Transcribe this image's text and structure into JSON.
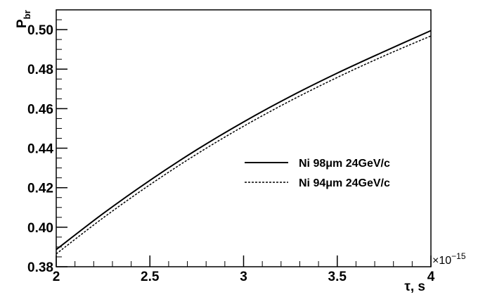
{
  "chart_data": {
    "type": "line",
    "xlabel": "τ, s",
    "ylabel_main": "P",
    "ylabel_sub": "br",
    "x_exponent_label": "×10",
    "x_exponent_power": "−15",
    "xlim": [
      2,
      4
    ],
    "ylim": [
      0.38,
      0.51
    ],
    "x_ticks": [
      {
        "value": 2,
        "label": "2"
      },
      {
        "value": 2.5,
        "label": "2.5"
      },
      {
        "value": 3,
        "label": "3"
      },
      {
        "value": 3.5,
        "label": "3.5"
      },
      {
        "value": 4,
        "label": "4"
      }
    ],
    "y_ticks": [
      {
        "value": 0.38,
        "label": "0.38"
      },
      {
        "value": 0.4,
        "label": "0.40"
      },
      {
        "value": 0.42,
        "label": "0.42"
      },
      {
        "value": 0.44,
        "label": "0.44"
      },
      {
        "value": 0.46,
        "label": "0.46"
      },
      {
        "value": 0.48,
        "label": "0.48"
      },
      {
        "value": 0.5,
        "label": "0.50"
      }
    ],
    "x": [
      2.0,
      2.25,
      2.5,
      2.75,
      3.0,
      3.25,
      3.5,
      3.75,
      4.0
    ],
    "series": [
      {
        "name": "Ni 98μm 24GeV/c",
        "style": "solid",
        "color": "#000000",
        "values": [
          0.3887,
          0.4069,
          0.4237,
          0.4392,
          0.4533,
          0.4662,
          0.478,
          0.4889,
          0.4995
        ]
      },
      {
        "name": "Ni 94μm 24GeV/c",
        "style": "dashed",
        "color": "#000000",
        "values": [
          0.3865,
          0.4047,
          0.4215,
          0.437,
          0.4511,
          0.464,
          0.4758,
          0.4867,
          0.4968
        ]
      }
    ],
    "legend_position": "right-middle",
    "grid": false
  }
}
